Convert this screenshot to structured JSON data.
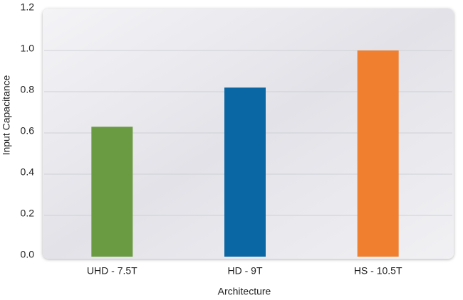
{
  "chart_data": {
    "type": "bar",
    "x_label": "Architecture",
    "y_label": "Input Capacitance",
    "categories": [
      "UHD - 7.5T",
      "HD - 9T",
      "HS - 10.5T"
    ],
    "values": [
      0.63,
      0.82,
      1.0
    ],
    "colors": [
      "#6a9a41",
      "#0b67a3",
      "#f07f30"
    ],
    "ylim": [
      0,
      1.2
    ],
    "yticks": [
      {
        "value": 0,
        "label": "0.0"
      },
      0.2,
      0.4,
      0.6,
      0.8,
      {
        "value": 1,
        "label": "1.0"
      },
      1.2
    ],
    "grid": true
  }
}
